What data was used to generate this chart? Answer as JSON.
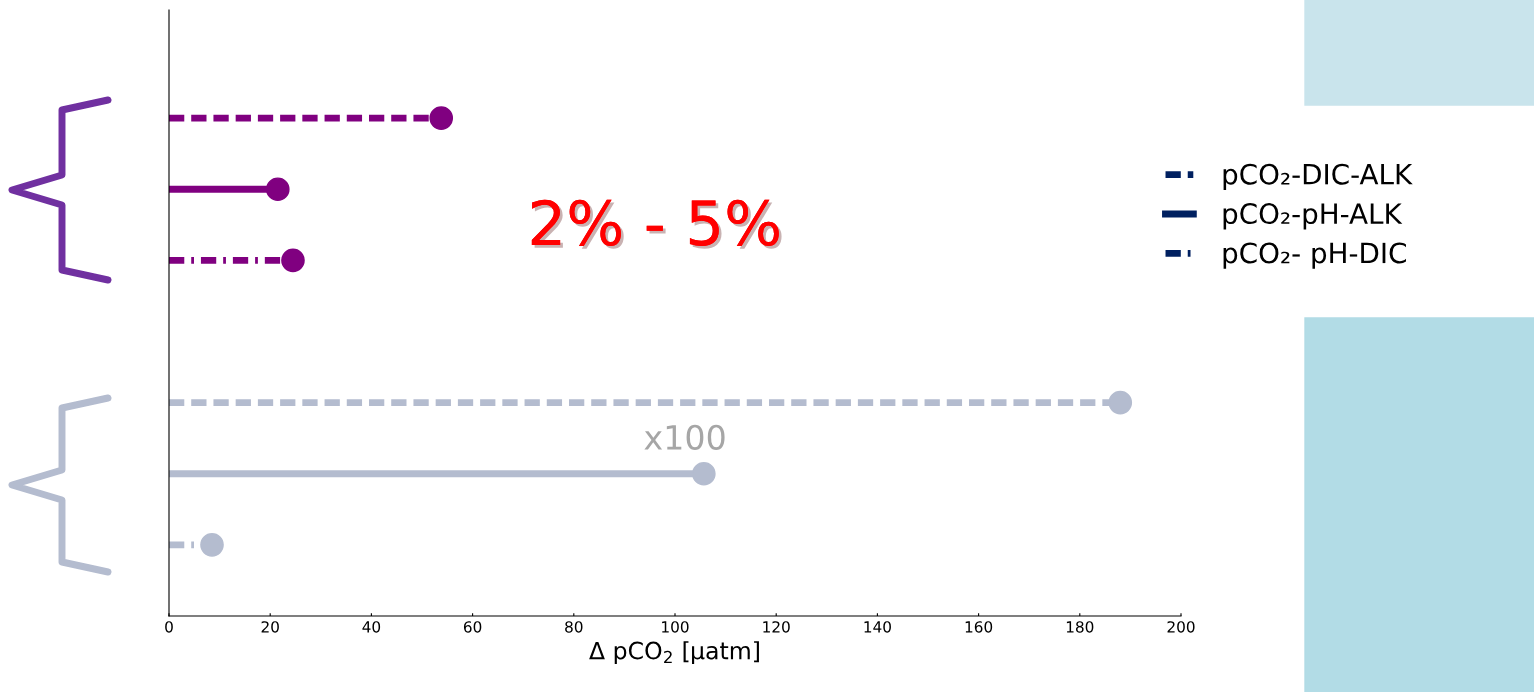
{
  "chart_data": {
    "type": "lollipop",
    "orientation": "horizontal",
    "categories": [
      null,
      null
    ],
    "xlabel": "Δ pCO$_{2}$ [µatm]",
    "xlim": [
      0,
      200
    ],
    "xticks": [
      0,
      20,
      40,
      60,
      80,
      100,
      120,
      140,
      160,
      180,
      200
    ],
    "tick_labels": "x",
    "grid": false,
    "legend": "right",
    "marker": "circle",
    "annotations": [
      "2% - 5%",
      "x100"
    ],
    "series": [
      {
        "name": "pCO₂-DIC-ALK",
        "color": "#002060",
        "line_style": "dashed",
        "colors": [
          "#800080",
          "#b4bccf"
        ],
        "values": [
          53.8,
          188
        ]
      },
      {
        "name": "pCO₂-pH-ALK",
        "color": "#002060",
        "line_style": "solid",
        "colors": [
          "#800080",
          "#b4bccf"
        ],
        "values": [
          21.5,
          105.7
        ]
      },
      {
        "name": "pCO₂- pH-DIC",
        "color": "#002060",
        "line_style": "dashdot",
        "colors": [
          "#800080",
          "#b4bccf"
        ],
        "values": [
          24.5,
          8.5
        ]
      }
    ]
  }
}
